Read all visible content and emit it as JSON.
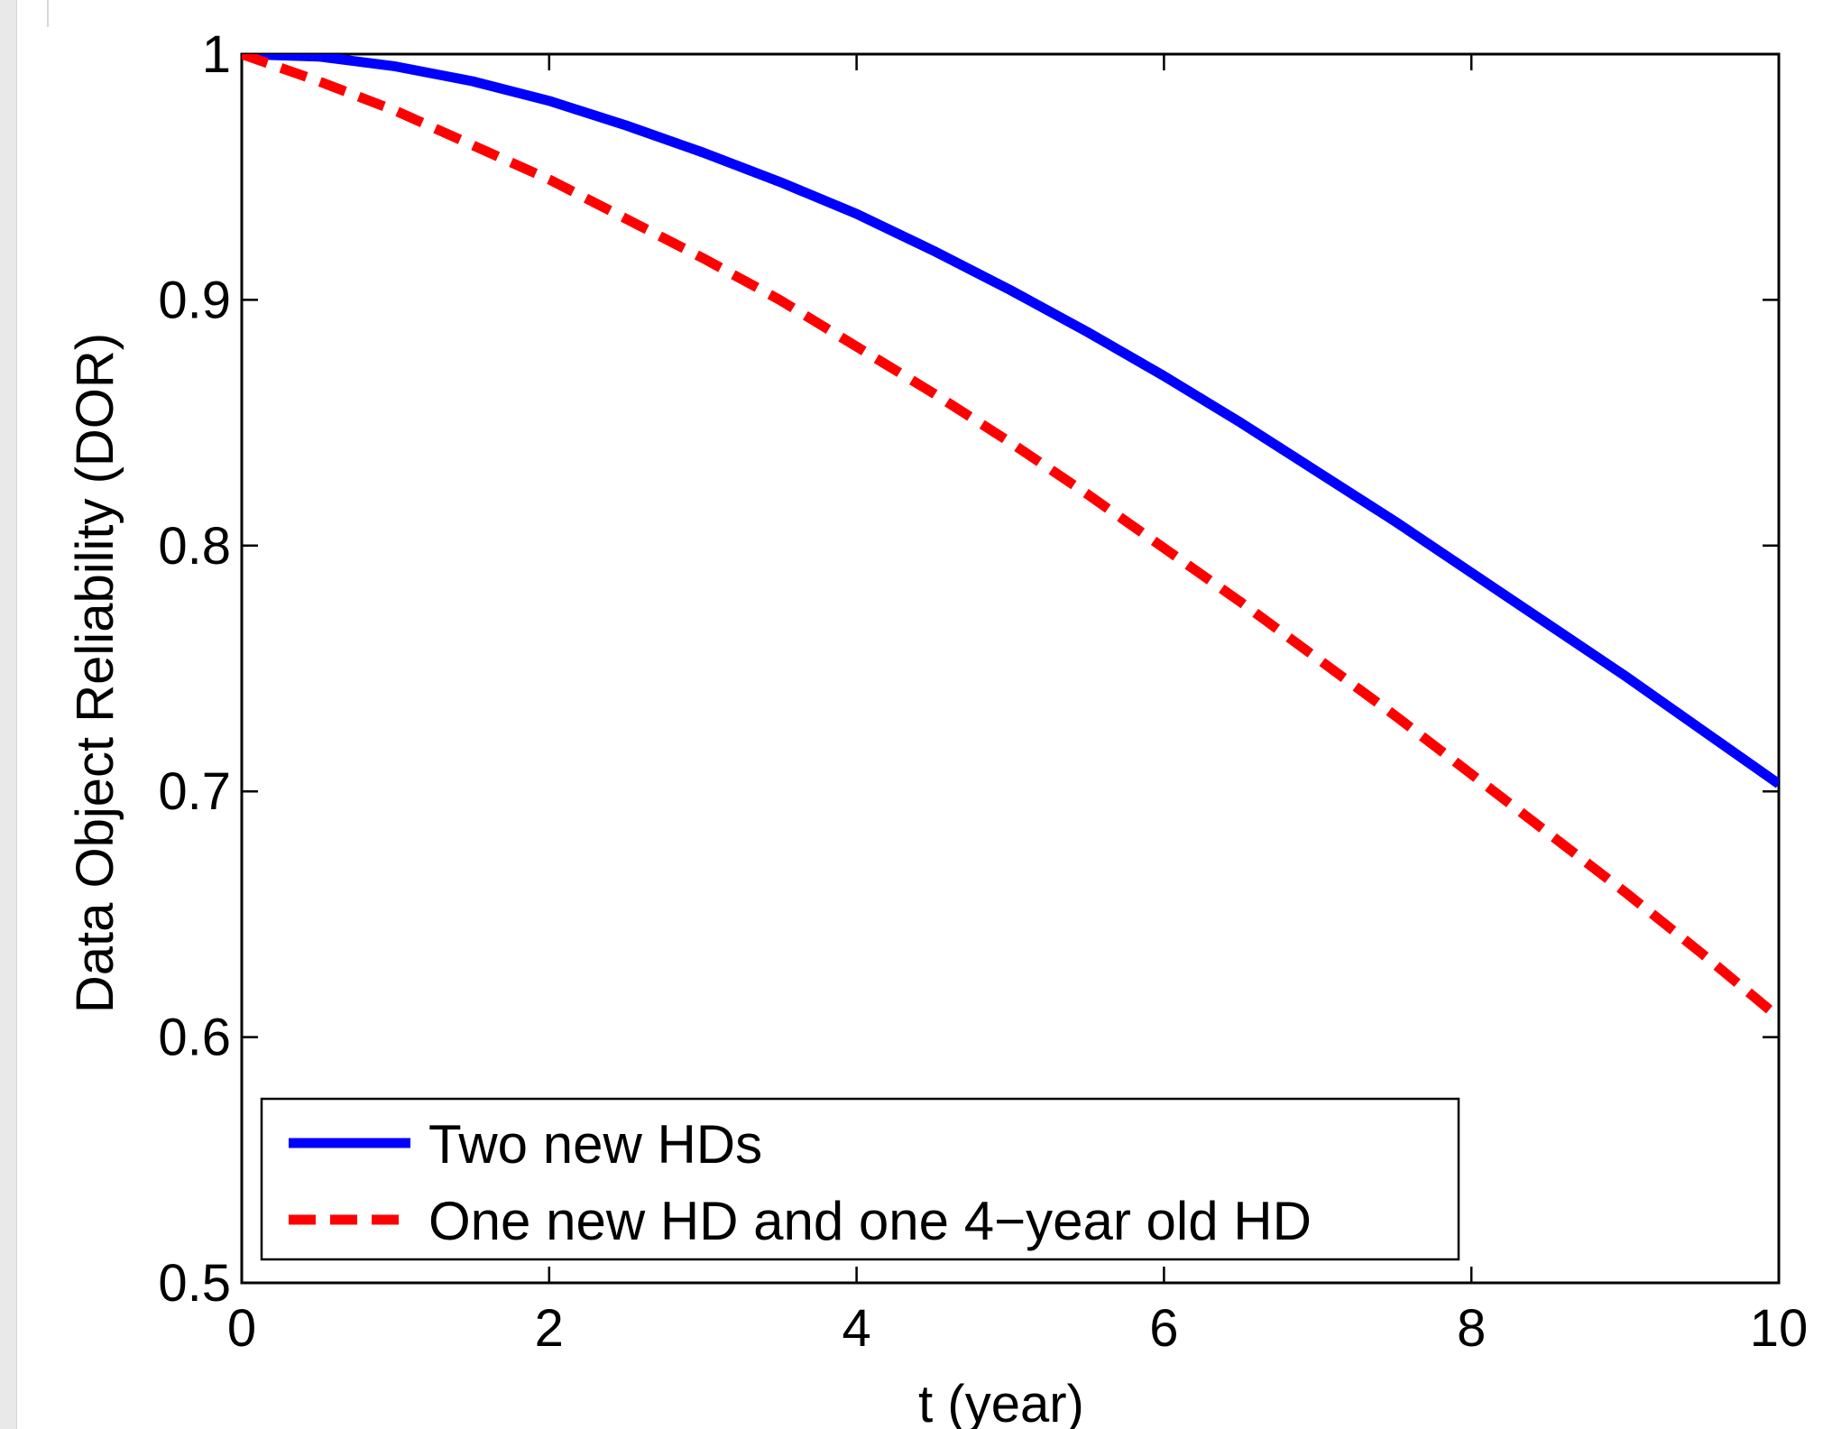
{
  "chart_data": {
    "type": "line",
    "title": "",
    "xlabel": "t (year)",
    "ylabel": "Data Object Reliability (DOR)",
    "xlim": [
      0,
      10
    ],
    "ylim": [
      0.5,
      1
    ],
    "xticks": [
      0,
      2,
      4,
      6,
      8,
      10
    ],
    "xtick_labels": [
      "0",
      "2",
      "4",
      "6",
      "8",
      "10"
    ],
    "yticks": [
      0.5,
      0.6,
      0.7,
      0.8,
      0.9,
      1
    ],
    "ytick_labels": [
      "0.5",
      "0.6",
      "0.7",
      "0.8",
      "0.9",
      "1"
    ],
    "grid": false,
    "legend_position": "bottom-left",
    "series": [
      {
        "name": "Two new HDs",
        "color": "#0000ff",
        "line_style": "solid",
        "x": [
          0,
          0.5,
          1,
          1.5,
          2,
          2.5,
          3,
          3.5,
          4,
          4.5,
          5,
          5.5,
          6,
          6.5,
          7,
          7.5,
          8,
          8.5,
          9,
          9.5,
          10
        ],
        "y": [
          1.0,
          0.999,
          0.995,
          0.989,
          0.981,
          0.971,
          0.96,
          0.948,
          0.935,
          0.92,
          0.904,
          0.887,
          0.869,
          0.85,
          0.83,
          0.81,
          0.789,
          0.768,
          0.747,
          0.725,
          0.703
        ]
      },
      {
        "name": "One new HD and one 4−year old HD",
        "color": "#ff0000",
        "line_style": "dashed",
        "x": [
          0,
          0.5,
          1,
          1.5,
          2,
          2.5,
          3,
          3.5,
          4,
          4.5,
          5,
          5.5,
          6,
          6.5,
          7,
          7.5,
          8,
          8.5,
          9,
          9.5,
          10
        ],
        "y": [
          1.0,
          0.989,
          0.977,
          0.963,
          0.949,
          0.933,
          0.917,
          0.9,
          0.881,
          0.862,
          0.842,
          0.821,
          0.799,
          0.777,
          0.754,
          0.731,
          0.707,
          0.683,
          0.659,
          0.634,
          0.608
        ]
      }
    ]
  }
}
